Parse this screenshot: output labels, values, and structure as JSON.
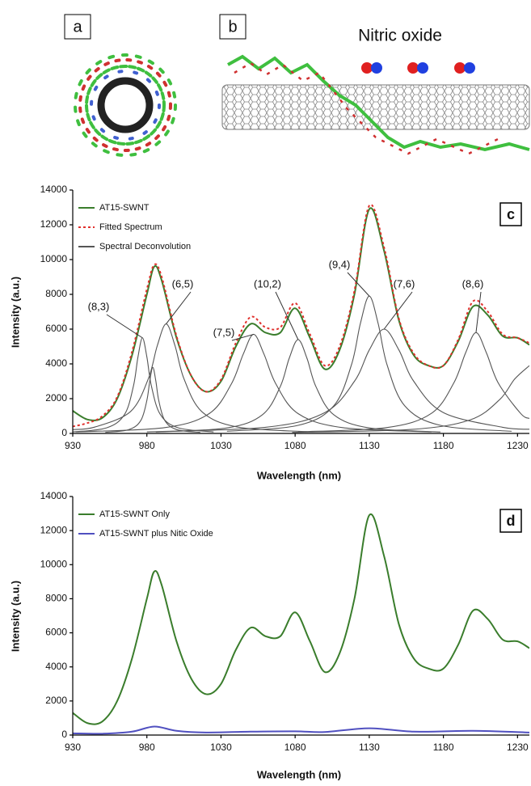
{
  "illustrations": {
    "a": "a",
    "b": "b",
    "molecule_label": "Nitric oxide"
  },
  "chart_data": [
    {
      "type": "line",
      "panel_label": "c",
      "x_label": "Wavelength (nm)",
      "y_label": "Intensity (a.u.)",
      "xlim": [
        930,
        1238
      ],
      "ylim": [
        0,
        14000
      ],
      "xticks": [
        930,
        980,
        1030,
        1080,
        1130,
        1180,
        1230
      ],
      "yticks": [
        0,
        2000,
        4000,
        6000,
        8000,
        10000,
        12000,
        14000
      ],
      "series": [
        {
          "name": "AT15-SWNT",
          "color": "#3a7d2c",
          "dashed": false,
          "x": [
            930,
            940,
            950,
            960,
            970,
            980,
            985,
            990,
            1000,
            1010,
            1020,
            1030,
            1040,
            1050,
            1060,
            1070,
            1080,
            1090,
            1100,
            1110,
            1120,
            1130,
            1140,
            1150,
            1160,
            1170,
            1180,
            1190,
            1200,
            1210,
            1220,
            1230,
            1238
          ],
          "values": [
            1300,
            800,
            900,
            2000,
            4500,
            8000,
            9600,
            8800,
            5500,
            3300,
            2400,
            3000,
            5000,
            6300,
            5800,
            5800,
            7200,
            5500,
            3700,
            4800,
            8000,
            12900,
            10500,
            6500,
            4500,
            3900,
            3900,
            5300,
            7300,
            6800,
            5600,
            5500,
            5100
          ]
        },
        {
          "name": "Fitted Spectrum",
          "color": "#e0302c",
          "dashed": true,
          "x": [
            930,
            940,
            950,
            960,
            970,
            980,
            985,
            990,
            1000,
            1010,
            1020,
            1030,
            1040,
            1050,
            1060,
            1070,
            1080,
            1090,
            1100,
            1110,
            1120,
            1130,
            1140,
            1150,
            1160,
            1170,
            1180,
            1190,
            1200,
            1210,
            1220,
            1230,
            1238
          ],
          "values": [
            400,
            600,
            1000,
            2100,
            4700,
            8300,
            9700,
            9000,
            5600,
            3300,
            2400,
            3100,
            5200,
            6700,
            6100,
            6100,
            7500,
            5700,
            3900,
            5000,
            8200,
            13100,
            10700,
            6600,
            4600,
            3900,
            3900,
            5400,
            7600,
            7000,
            5700,
            5500,
            5200
          ]
        }
      ],
      "components_name": "Spectral Deconvolution",
      "components_color": "#555555",
      "components": [
        {
          "label": "(8,3)",
          "x": [
            930,
            953,
            965,
            971,
            974,
            977,
            980,
            983,
            989,
            1001,
            1025
          ],
          "values": [
            88,
            324,
            1100,
            2750,
            4400,
            5500,
            4400,
            2750,
            1100,
            324,
            85
          ]
        },
        {
          "label": null,
          "x": [
            952,
            968,
            976,
            980,
            982,
            984,
            986,
            988,
            992,
            1000,
            1016
          ],
          "values": [
            59,
            224,
            760,
            1900,
            3040,
            3800,
            3040,
            1900,
            760,
            224,
            59
          ]
        },
        {
          "label": "(6,5)",
          "x": [
            930,
            945,
            969,
            981,
            987,
            993,
            999,
            1005,
            1017,
            1041,
            1089
          ],
          "values": [
            220,
            370,
            1260,
            3150,
            5040,
            6300,
            5040,
            3150,
            1260,
            370,
            97
          ]
        },
        {
          "label": "(7,5)",
          "x": [
            932,
            992,
            1022,
            1037,
            1045,
            1052,
            1059,
            1067,
            1082,
            1112,
            1172
          ],
          "values": [
            88,
            335,
            1140,
            2850,
            4560,
            5700,
            4560,
            2850,
            1140,
            335,
            88
          ]
        },
        {
          "label": "(10,2)",
          "x": [
            986,
            1034,
            1058,
            1070,
            1076,
            1082,
            1088,
            1094,
            1106,
            1130,
            1178
          ],
          "values": [
            83,
            318,
            1080,
            2700,
            4320,
            5400,
            4320,
            2700,
            1080,
            318,
            83
          ]
        },
        {
          "label": "(9,4)",
          "x": [
            1034,
            1082,
            1106,
            1118,
            1124,
            1130,
            1136,
            1142,
            1154,
            1178,
            1226
          ],
          "values": [
            122,
            465,
            1580,
            3950,
            6320,
            7900,
            6320,
            3950,
            1580,
            465,
            122
          ]
        },
        {
          "label": "(7,6)",
          "x": [
            980,
            1060,
            1100,
            1120,
            1130,
            1140,
            1150,
            1160,
            1180,
            1220,
            1238
          ],
          "values": [
            92,
            353,
            1200,
            3000,
            4800,
            6000,
            4800,
            3000,
            1200,
            353,
            240
          ]
        },
        {
          "label": "(8,6)",
          "x": [
            1082,
            1142,
            1172,
            1187,
            1195,
            1202,
            1209,
            1217,
            1232,
            1238
          ],
          "values": [
            89,
            341,
            1160,
            2900,
            4640,
            5800,
            4640,
            2900,
            1160,
            858
          ]
        },
        {
          "label": null,
          "x": [
            1078,
            1158,
            1198,
            1218,
            1228,
            1238
          ],
          "values": [
            60,
            229,
            780,
            1950,
            3120,
            3900
          ]
        }
      ]
    },
    {
      "type": "line",
      "panel_label": "d",
      "x_label": "Wavelength (nm)",
      "y_label": "Intensity (a.u.)",
      "xlim": [
        930,
        1238
      ],
      "ylim": [
        0,
        14000
      ],
      "xticks": [
        930,
        980,
        1030,
        1080,
        1130,
        1180,
        1230
      ],
      "yticks": [
        0,
        2000,
        4000,
        6000,
        8000,
        10000,
        12000,
        14000
      ],
      "series": [
        {
          "name": "AT15-SWNT Only",
          "color": "#3a7d2c",
          "dashed": false,
          "x": [
            930,
            940,
            950,
            960,
            970,
            980,
            985,
            990,
            1000,
            1010,
            1020,
            1030,
            1040,
            1050,
            1060,
            1070,
            1080,
            1090,
            1100,
            1110,
            1120,
            1130,
            1140,
            1150,
            1160,
            1170,
            1180,
            1190,
            1200,
            1210,
            1220,
            1230,
            1238
          ],
          "values": [
            1300,
            700,
            800,
            2000,
            4500,
            8000,
            9600,
            8800,
            5500,
            3300,
            2400,
            3000,
            5000,
            6300,
            5800,
            5800,
            7200,
            5500,
            3700,
            4800,
            8000,
            12900,
            10500,
            6500,
            4500,
            3900,
            3900,
            5300,
            7300,
            6800,
            5600,
            5500,
            5100
          ]
        },
        {
          "name": "AT15-SWNT plus Nitic Oxide",
          "color": "#5050c0",
          "dashed": false,
          "x": [
            930,
            950,
            970,
            985,
            1000,
            1020,
            1050,
            1080,
            1100,
            1130,
            1160,
            1200,
            1238
          ],
          "values": [
            100,
            80,
            200,
            500,
            250,
            150,
            200,
            220,
            180,
            400,
            200,
            250,
            150
          ]
        }
      ]
    }
  ]
}
